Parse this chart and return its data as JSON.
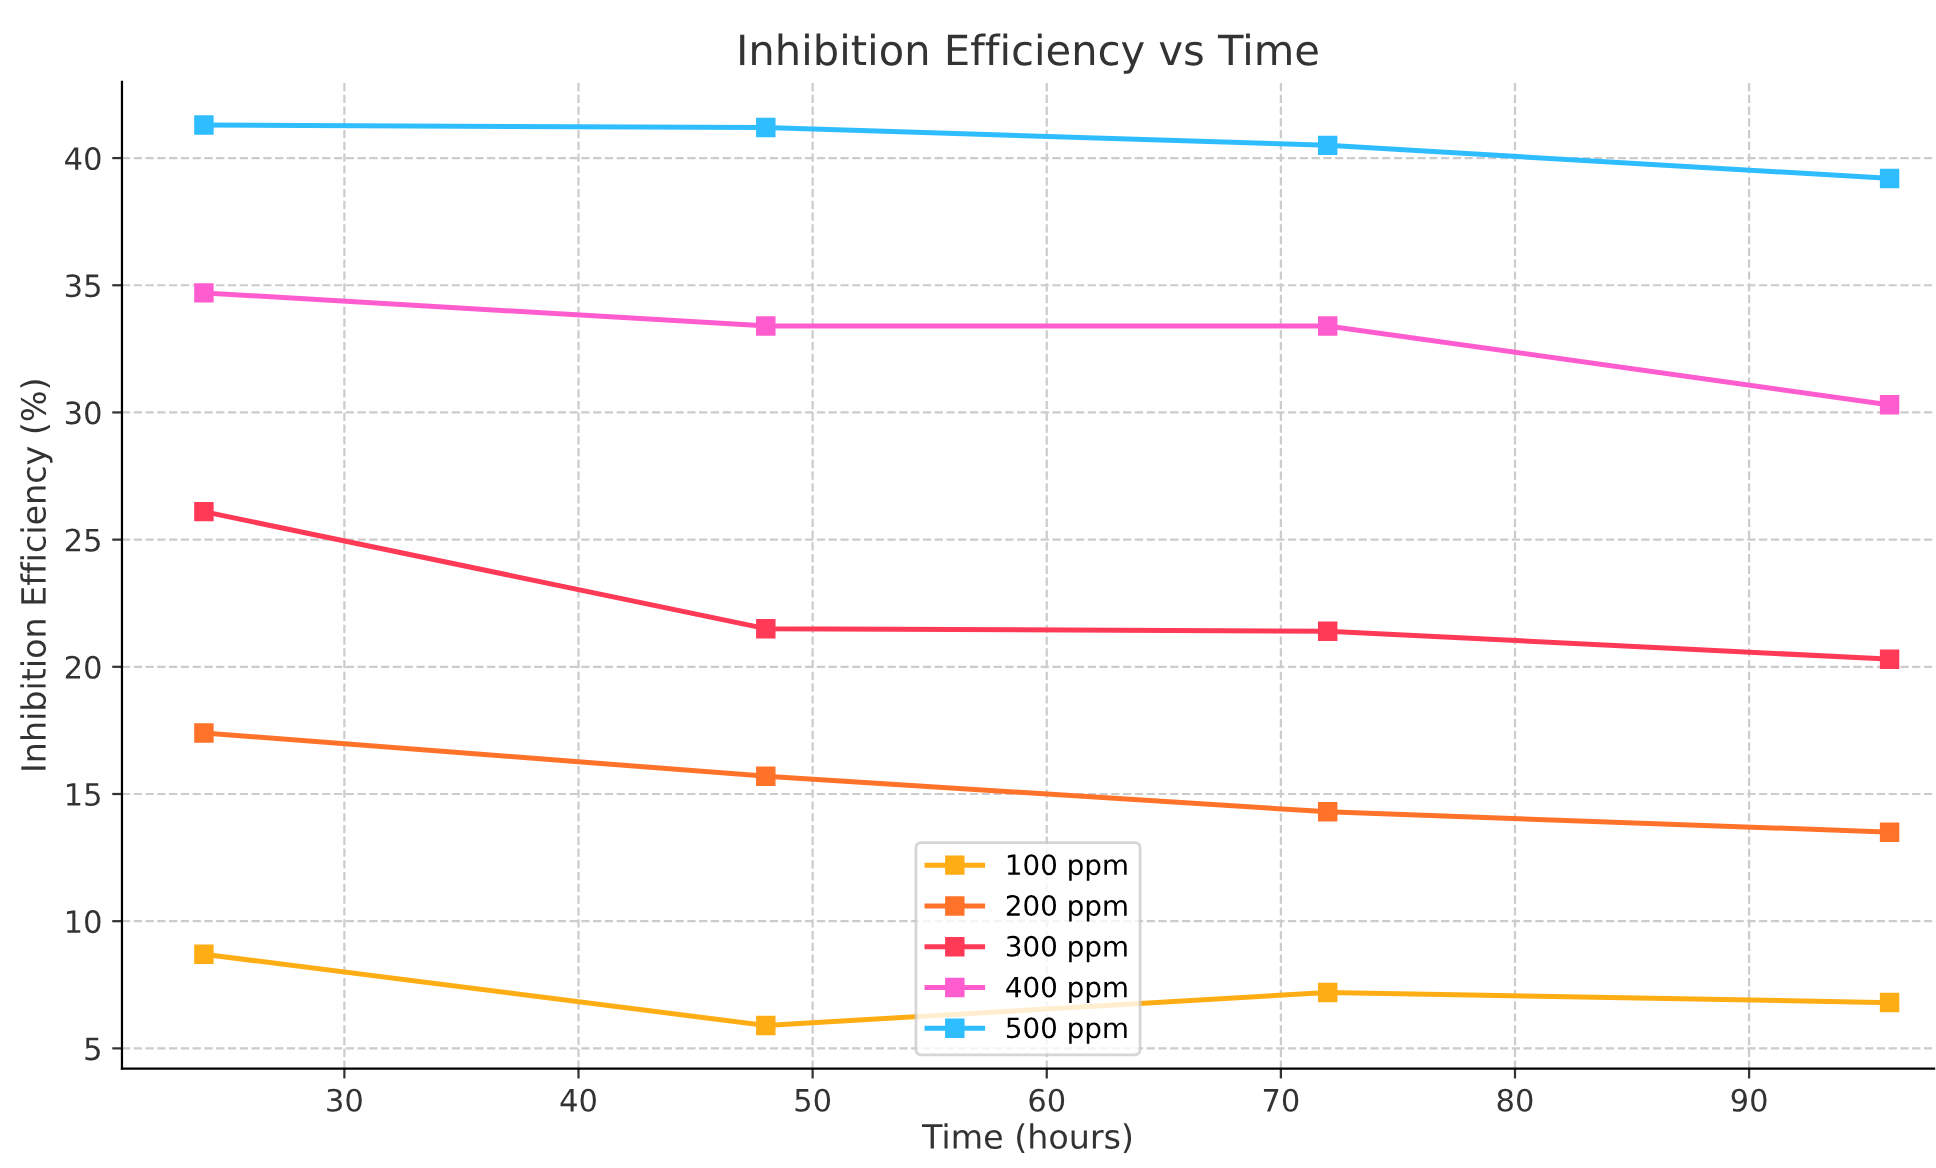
{
  "chart_data": {
    "type": "line",
    "title": "Inhibition Efficiency vs Time",
    "xlabel": "Time (hours)",
    "ylabel": "Inhibition Efficiency (%)",
    "x": [
      24,
      48,
      72,
      96
    ],
    "series": [
      {
        "name": "100 ppm",
        "color": "#ffad14",
        "values": [
          8.7,
          5.9,
          7.2,
          6.8
        ]
      },
      {
        "name": "200 ppm",
        "color": "#ff7229",
        "values": [
          17.4,
          15.7,
          14.3,
          13.5
        ]
      },
      {
        "name": "300 ppm",
        "color": "#ff3a57",
        "values": [
          26.1,
          21.5,
          21.4,
          20.3
        ]
      },
      {
        "name": "400 ppm",
        "color": "#ff5ccf",
        "values": [
          34.7,
          33.4,
          33.4,
          30.3
        ]
      },
      {
        "name": "500 ppm",
        "color": "#2ebdff",
        "values": [
          41.3,
          41.2,
          40.5,
          39.2
        ]
      }
    ],
    "xlim": [
      20.5,
      97.9
    ],
    "ylim": [
      4.2,
      43.0
    ],
    "xticks": [
      30,
      40,
      50,
      60,
      70,
      80,
      90
    ],
    "yticks": [
      5,
      10,
      15,
      20,
      25,
      30,
      35,
      40
    ],
    "grid": true,
    "legend": "bottom",
    "marker": "square",
    "line_style": "solid"
  }
}
